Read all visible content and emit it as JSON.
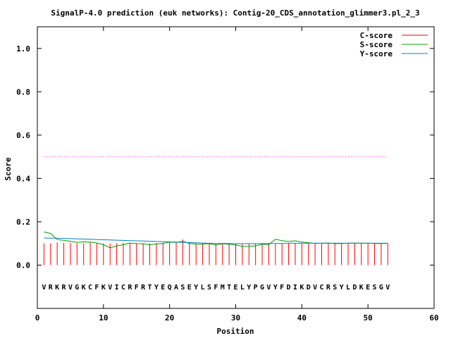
{
  "chart_data": {
    "type": "line",
    "title": "SignalP-4.0 prediction (euk networks): Contig-20_CDS_annotation_glimmer3.pl_2_3",
    "xlabel": "Position",
    "ylabel": "Score",
    "xlim": [
      0,
      60
    ],
    "ylim": [
      -0.2,
      1.1
    ],
    "x_ticks": [
      0,
      10,
      20,
      30,
      40,
      50,
      60
    ],
    "x_tick_labels": [
      "0",
      "10",
      "20",
      "30",
      "40",
      "50",
      "60"
    ],
    "y_ticks": [
      0.0,
      0.2,
      0.4,
      0.6,
      0.8,
      1.0
    ],
    "y_tick_labels": [
      "0.0",
      "0.2",
      "0.4",
      "0.6",
      "0.8",
      "1.0"
    ],
    "legend_placement": "top-right",
    "threshold": {
      "value": 0.5,
      "x_start": 1,
      "x_end": 53,
      "color": "#ff00ff"
    },
    "sequence": [
      "V",
      "R",
      "K",
      "R",
      "V",
      "G",
      "K",
      "C",
      "F",
      "K",
      "V",
      "I",
      "C",
      "R",
      "F",
      "R",
      "T",
      "Y",
      "E",
      "Q",
      "A",
      "S",
      "E",
      "Y",
      "L",
      "S",
      "F",
      "M",
      "T",
      "E",
      "L",
      "Y",
      "P",
      "G",
      "V",
      "Y",
      "F",
      "D",
      "I",
      "K",
      "D",
      "V",
      "C",
      "R",
      "S",
      "Y",
      "L",
      "D",
      "K",
      "E",
      "S",
      "G",
      "V"
    ],
    "sequence_y": -0.1,
    "x": [
      1,
      2,
      3,
      4,
      5,
      6,
      7,
      8,
      9,
      10,
      11,
      12,
      13,
      14,
      15,
      16,
      17,
      18,
      19,
      20,
      21,
      22,
      23,
      24,
      25,
      26,
      27,
      28,
      29,
      30,
      31,
      32,
      33,
      34,
      35,
      36,
      37,
      38,
      39,
      40,
      41,
      42,
      43,
      44,
      45,
      46,
      47,
      48,
      49,
      50,
      51,
      52,
      53
    ],
    "series": [
      {
        "name": "C-score",
        "color": "#ff0000",
        "style": "impulse",
        "values": [
          0.1,
          0.1,
          0.105,
          0.102,
          0.103,
          0.101,
          0.1,
          0.104,
          0.102,
          0.1,
          0.1,
          0.101,
          0.103,
          0.1,
          0.102,
          0.101,
          0.1,
          0.102,
          0.103,
          0.105,
          0.104,
          0.118,
          0.102,
          0.1,
          0.101,
          0.1,
          0.099,
          0.1,
          0.101,
          0.1,
          0.099,
          0.1,
          0.1,
          0.101,
          0.102,
          0.1,
          0.101,
          0.102,
          0.101,
          0.1,
          0.102,
          0.101,
          0.1,
          0.101,
          0.102,
          0.101,
          0.1,
          0.101,
          0.101,
          0.1,
          0.101,
          0.101,
          0.1
        ]
      },
      {
        "name": "S-score",
        "color": "#00a000",
        "style": "line",
        "values": [
          0.153,
          0.146,
          0.118,
          0.114,
          0.11,
          0.105,
          0.107,
          0.106,
          0.102,
          0.094,
          0.08,
          0.088,
          0.094,
          0.102,
          0.099,
          0.098,
          0.094,
          0.097,
          0.1,
          0.106,
          0.105,
          0.11,
          0.1,
          0.097,
          0.096,
          0.099,
          0.093,
          0.098,
          0.096,
          0.093,
          0.086,
          0.087,
          0.089,
          0.096,
          0.095,
          0.119,
          0.113,
          0.109,
          0.112,
          0.106,
          0.103,
          0.1,
          0.101,
          0.102,
          0.099,
          0.1,
          0.101,
          0.102,
          0.101,
          0.101,
          0.1,
          0.1,
          0.1
        ]
      },
      {
        "name": "Y-score",
        "color": "#0080c0",
        "style": "line",
        "values": [
          0.125,
          0.124,
          0.124,
          0.123,
          0.122,
          0.121,
          0.12,
          0.119,
          0.118,
          0.117,
          0.116,
          0.115,
          0.114,
          0.113,
          0.112,
          0.111,
          0.11,
          0.109,
          0.108,
          0.107,
          0.106,
          0.105,
          0.104,
          0.103,
          0.102,
          0.101,
          0.1,
          0.1,
          0.1,
          0.099,
          0.099,
          0.099,
          0.099,
          0.099,
          0.099,
          0.1,
          0.1,
          0.101,
          0.101,
          0.101,
          0.101,
          0.101,
          0.101,
          0.101,
          0.101,
          0.101,
          0.101,
          0.101,
          0.101,
          0.101,
          0.101,
          0.101,
          0.101
        ]
      }
    ]
  }
}
